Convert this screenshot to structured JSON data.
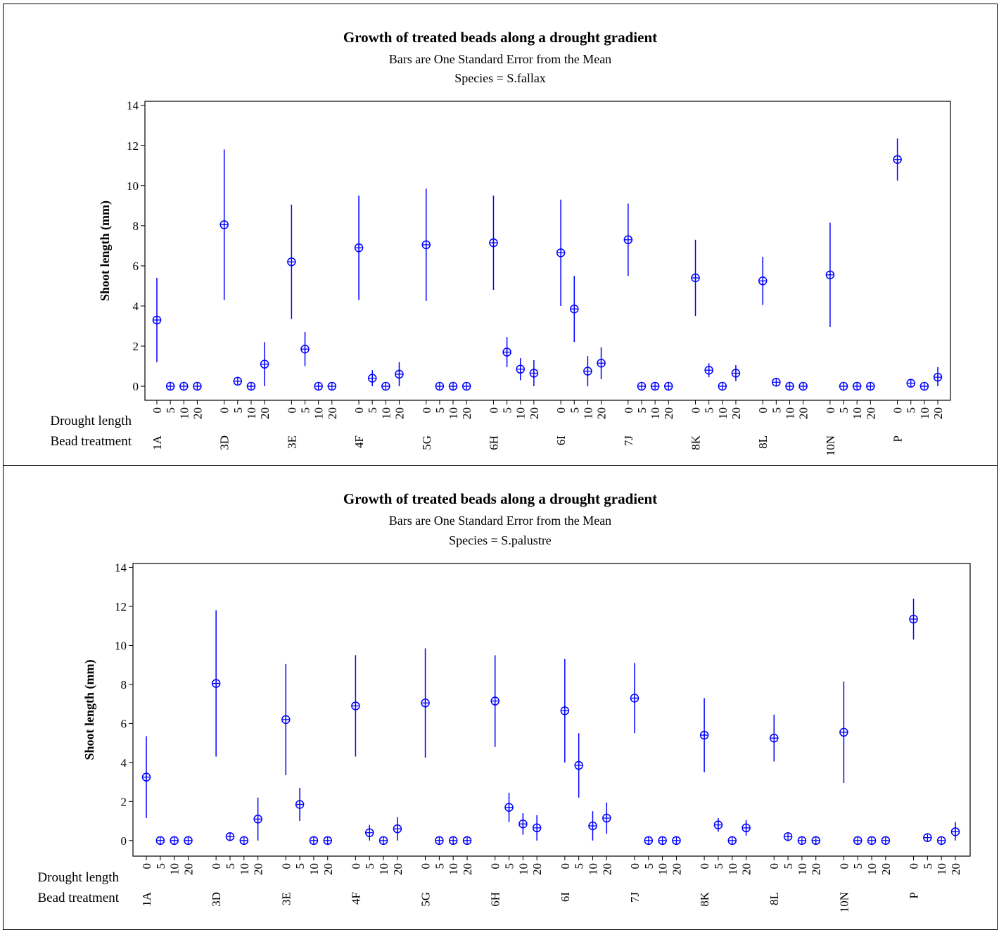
{
  "chart_data": [
    {
      "type": "scatter",
      "title": "Growth of treated beads along a drought gradient",
      "subtitles": [
        "Bars are One Standard Error from the Mean",
        "Species = S.fallax"
      ],
      "ylabel": "Shoot length (mm)",
      "ylim": [
        -0.7,
        14.2
      ],
      "yticks": [
        0,
        2,
        4,
        6,
        8,
        10,
        12,
        14
      ],
      "x_row_labels": [
        "Drought length",
        "Bead treatment"
      ],
      "drought_lengths": [
        "0",
        "5",
        "10",
        "20"
      ],
      "bead_treatments": [
        "1A",
        "3D",
        "3E",
        "4F",
        "5G",
        "6H",
        "6I",
        "7J",
        "8K",
        "8L",
        "10N",
        "P"
      ],
      "marker": "circle-plus",
      "error_bars": "one standard error",
      "color": "#0000ff",
      "groups": [
        {
          "treatment": "1A",
          "points": [
            {
              "drought": "0",
              "mean": 3.3,
              "se": 2.1
            },
            {
              "drought": "5",
              "mean": 0,
              "se": 0
            },
            {
              "drought": "10",
              "mean": 0,
              "se": 0
            },
            {
              "drought": "20",
              "mean": 0,
              "se": 0
            }
          ]
        },
        {
          "treatment": "3D",
          "points": [
            {
              "drought": "0",
              "mean": 8.05,
              "se": 3.75
            },
            {
              "drought": "5",
              "mean": 0.25,
              "se": 0
            },
            {
              "drought": "10",
              "mean": 0,
              "se": 0
            },
            {
              "drought": "20",
              "mean": 1.1,
              "se": 1.1
            }
          ]
        },
        {
          "treatment": "3E",
          "points": [
            {
              "drought": "0",
              "mean": 6.2,
              "se": 2.85
            },
            {
              "drought": "5",
              "mean": 1.85,
              "se": 0.85
            },
            {
              "drought": "10",
              "mean": 0,
              "se": 0
            },
            {
              "drought": "20",
              "mean": 0,
              "se": 0
            }
          ]
        },
        {
          "treatment": "4F",
          "points": [
            {
              "drought": "0",
              "mean": 6.9,
              "se": 2.6
            },
            {
              "drought": "5",
              "mean": 0.4,
              "se": 0.4
            },
            {
              "drought": "10",
              "mean": 0,
              "se": 0
            },
            {
              "drought": "20",
              "mean": 0.6,
              "se": 0.6
            }
          ]
        },
        {
          "treatment": "5G",
          "points": [
            {
              "drought": "0",
              "mean": 7.05,
              "se": 2.8
            },
            {
              "drought": "5",
              "mean": 0,
              "se": 0
            },
            {
              "drought": "10",
              "mean": 0,
              "se": 0
            },
            {
              "drought": "20",
              "mean": 0,
              "se": 0
            }
          ]
        },
        {
          "treatment": "6H",
          "points": [
            {
              "drought": "0",
              "mean": 7.15,
              "se": 2.35
            },
            {
              "drought": "5",
              "mean": 1.7,
              "se": 0.75
            },
            {
              "drought": "10",
              "mean": 0.85,
              "se": 0.55
            },
            {
              "drought": "20",
              "mean": 0.65,
              "se": 0.65
            }
          ]
        },
        {
          "treatment": "6I",
          "points": [
            {
              "drought": "0",
              "mean": 6.65,
              "se": 2.65
            },
            {
              "drought": "5",
              "mean": 3.85,
              "se": 1.65
            },
            {
              "drought": "10",
              "mean": 0.75,
              "se": 0.75
            },
            {
              "drought": "20",
              "mean": 1.15,
              "se": 0.8
            }
          ]
        },
        {
          "treatment": "7J",
          "points": [
            {
              "drought": "0",
              "mean": 7.3,
              "se": 1.8
            },
            {
              "drought": "5",
              "mean": 0,
              "se": 0
            },
            {
              "drought": "10",
              "mean": 0,
              "se": 0
            },
            {
              "drought": "20",
              "mean": 0,
              "se": 0
            }
          ]
        },
        {
          "treatment": "8K",
          "points": [
            {
              "drought": "0",
              "mean": 5.4,
              "se": 1.9
            },
            {
              "drought": "5",
              "mean": 0.8,
              "se": 0.35
            },
            {
              "drought": "10",
              "mean": 0,
              "se": 0
            },
            {
              "drought": "20",
              "mean": 0.65,
              "se": 0.4
            }
          ]
        },
        {
          "treatment": "8L",
          "points": [
            {
              "drought": "0",
              "mean": 5.25,
              "se": 1.2
            },
            {
              "drought": "5",
              "mean": 0.2,
              "se": 0
            },
            {
              "drought": "10",
              "mean": 0,
              "se": 0
            },
            {
              "drought": "20",
              "mean": 0,
              "se": 0
            }
          ]
        },
        {
          "treatment": "10N",
          "points": [
            {
              "drought": "0",
              "mean": 5.55,
              "se": 2.6
            },
            {
              "drought": "5",
              "mean": 0,
              "se": 0
            },
            {
              "drought": "10",
              "mean": 0,
              "se": 0
            },
            {
              "drought": "20",
              "mean": 0,
              "se": 0
            }
          ]
        },
        {
          "treatment": "P",
          "points": [
            {
              "drought": "0",
              "mean": 11.3,
              "se": 1.05
            },
            {
              "drought": "5",
              "mean": 0.15,
              "se": 0
            },
            {
              "drought": "10",
              "mean": 0,
              "se": 0
            },
            {
              "drought": "20",
              "mean": 0.45,
              "se": 0.5
            }
          ]
        }
      ]
    },
    {
      "type": "scatter",
      "title": "Growth of treated beads along a drought gradient",
      "subtitles": [
        "Bars are One Standard Error from the Mean",
        "Species = S.palustre"
      ],
      "ylabel": "Shoot length (mm)",
      "ylim": [
        -0.8,
        14.2
      ],
      "yticks": [
        0,
        2,
        4,
        6,
        8,
        10,
        12,
        14
      ],
      "x_row_labels": [
        "Drought length",
        "Bead treatment"
      ],
      "drought_lengths": [
        "0",
        "5",
        "10",
        "20"
      ],
      "bead_treatments": [
        "1A",
        "3D",
        "3E",
        "4F",
        "5G",
        "6H",
        "6I",
        "7J",
        "8K",
        "8L",
        "10N",
        "P"
      ],
      "marker": "circle-plus",
      "error_bars": "one standard error",
      "color": "#0000ff",
      "groups": [
        {
          "treatment": "1A",
          "points": [
            {
              "drought": "0",
              "mean": 3.25,
              "se": 2.1
            },
            {
              "drought": "5",
              "mean": 0,
              "se": 0
            },
            {
              "drought": "10",
              "mean": 0,
              "se": 0
            },
            {
              "drought": "20",
              "mean": 0,
              "se": 0
            }
          ]
        },
        {
          "treatment": "3D",
          "points": [
            {
              "drought": "0",
              "mean": 8.05,
              "se": 3.75
            },
            {
              "drought": "5",
              "mean": 0.2,
              "se": 0
            },
            {
              "drought": "10",
              "mean": 0,
              "se": 0
            },
            {
              "drought": "20",
              "mean": 1.1,
              "se": 1.1
            }
          ]
        },
        {
          "treatment": "3E",
          "points": [
            {
              "drought": "0",
              "mean": 6.2,
              "se": 2.85
            },
            {
              "drought": "5",
              "mean": 1.85,
              "se": 0.85
            },
            {
              "drought": "10",
              "mean": 0,
              "se": 0
            },
            {
              "drought": "20",
              "mean": 0,
              "se": 0
            }
          ]
        },
        {
          "treatment": "4F",
          "points": [
            {
              "drought": "0",
              "mean": 6.9,
              "se": 2.6
            },
            {
              "drought": "5",
              "mean": 0.4,
              "se": 0.4
            },
            {
              "drought": "10",
              "mean": 0,
              "se": 0
            },
            {
              "drought": "20",
              "mean": 0.6,
              "se": 0.6
            }
          ]
        },
        {
          "treatment": "5G",
          "points": [
            {
              "drought": "0",
              "mean": 7.05,
              "se": 2.8
            },
            {
              "drought": "5",
              "mean": 0,
              "se": 0
            },
            {
              "drought": "10",
              "mean": 0,
              "se": 0
            },
            {
              "drought": "20",
              "mean": 0,
              "se": 0
            }
          ]
        },
        {
          "treatment": "6H",
          "points": [
            {
              "drought": "0",
              "mean": 7.15,
              "se": 2.35
            },
            {
              "drought": "5",
              "mean": 1.7,
              "se": 0.75
            },
            {
              "drought": "10",
              "mean": 0.85,
              "se": 0.55
            },
            {
              "drought": "20",
              "mean": 0.65,
              "se": 0.65
            }
          ]
        },
        {
          "treatment": "6I",
          "points": [
            {
              "drought": "0",
              "mean": 6.65,
              "se": 2.65
            },
            {
              "drought": "5",
              "mean": 3.85,
              "se": 1.65
            },
            {
              "drought": "10",
              "mean": 0.75,
              "se": 0.75
            },
            {
              "drought": "20",
              "mean": 1.15,
              "se": 0.8
            }
          ]
        },
        {
          "treatment": "7J",
          "points": [
            {
              "drought": "0",
              "mean": 7.3,
              "se": 1.8
            },
            {
              "drought": "5",
              "mean": 0,
              "se": 0
            },
            {
              "drought": "10",
              "mean": 0,
              "se": 0
            },
            {
              "drought": "20",
              "mean": 0,
              "se": 0
            }
          ]
        },
        {
          "treatment": "8K",
          "points": [
            {
              "drought": "0",
              "mean": 5.4,
              "se": 1.9
            },
            {
              "drought": "5",
              "mean": 0.8,
              "se": 0.35
            },
            {
              "drought": "10",
              "mean": 0,
              "se": 0
            },
            {
              "drought": "20",
              "mean": 0.65,
              "se": 0.4
            }
          ]
        },
        {
          "treatment": "8L",
          "points": [
            {
              "drought": "0",
              "mean": 5.25,
              "se": 1.2
            },
            {
              "drought": "5",
              "mean": 0.2,
              "se": 0
            },
            {
              "drought": "10",
              "mean": 0,
              "se": 0
            },
            {
              "drought": "20",
              "mean": 0,
              "se": 0
            }
          ]
        },
        {
          "treatment": "10N",
          "points": [
            {
              "drought": "0",
              "mean": 5.55,
              "se": 2.6
            },
            {
              "drought": "5",
              "mean": 0,
              "se": 0
            },
            {
              "drought": "10",
              "mean": 0,
              "se": 0
            },
            {
              "drought": "20",
              "mean": 0,
              "se": 0
            }
          ]
        },
        {
          "treatment": "P",
          "points": [
            {
              "drought": "0",
              "mean": 11.35,
              "se": 1.05
            },
            {
              "drought": "5",
              "mean": 0.15,
              "se": 0
            },
            {
              "drought": "10",
              "mean": 0,
              "se": 0
            },
            {
              "drought": "20",
              "mean": 0.45,
              "se": 0.5
            }
          ]
        }
      ]
    }
  ]
}
